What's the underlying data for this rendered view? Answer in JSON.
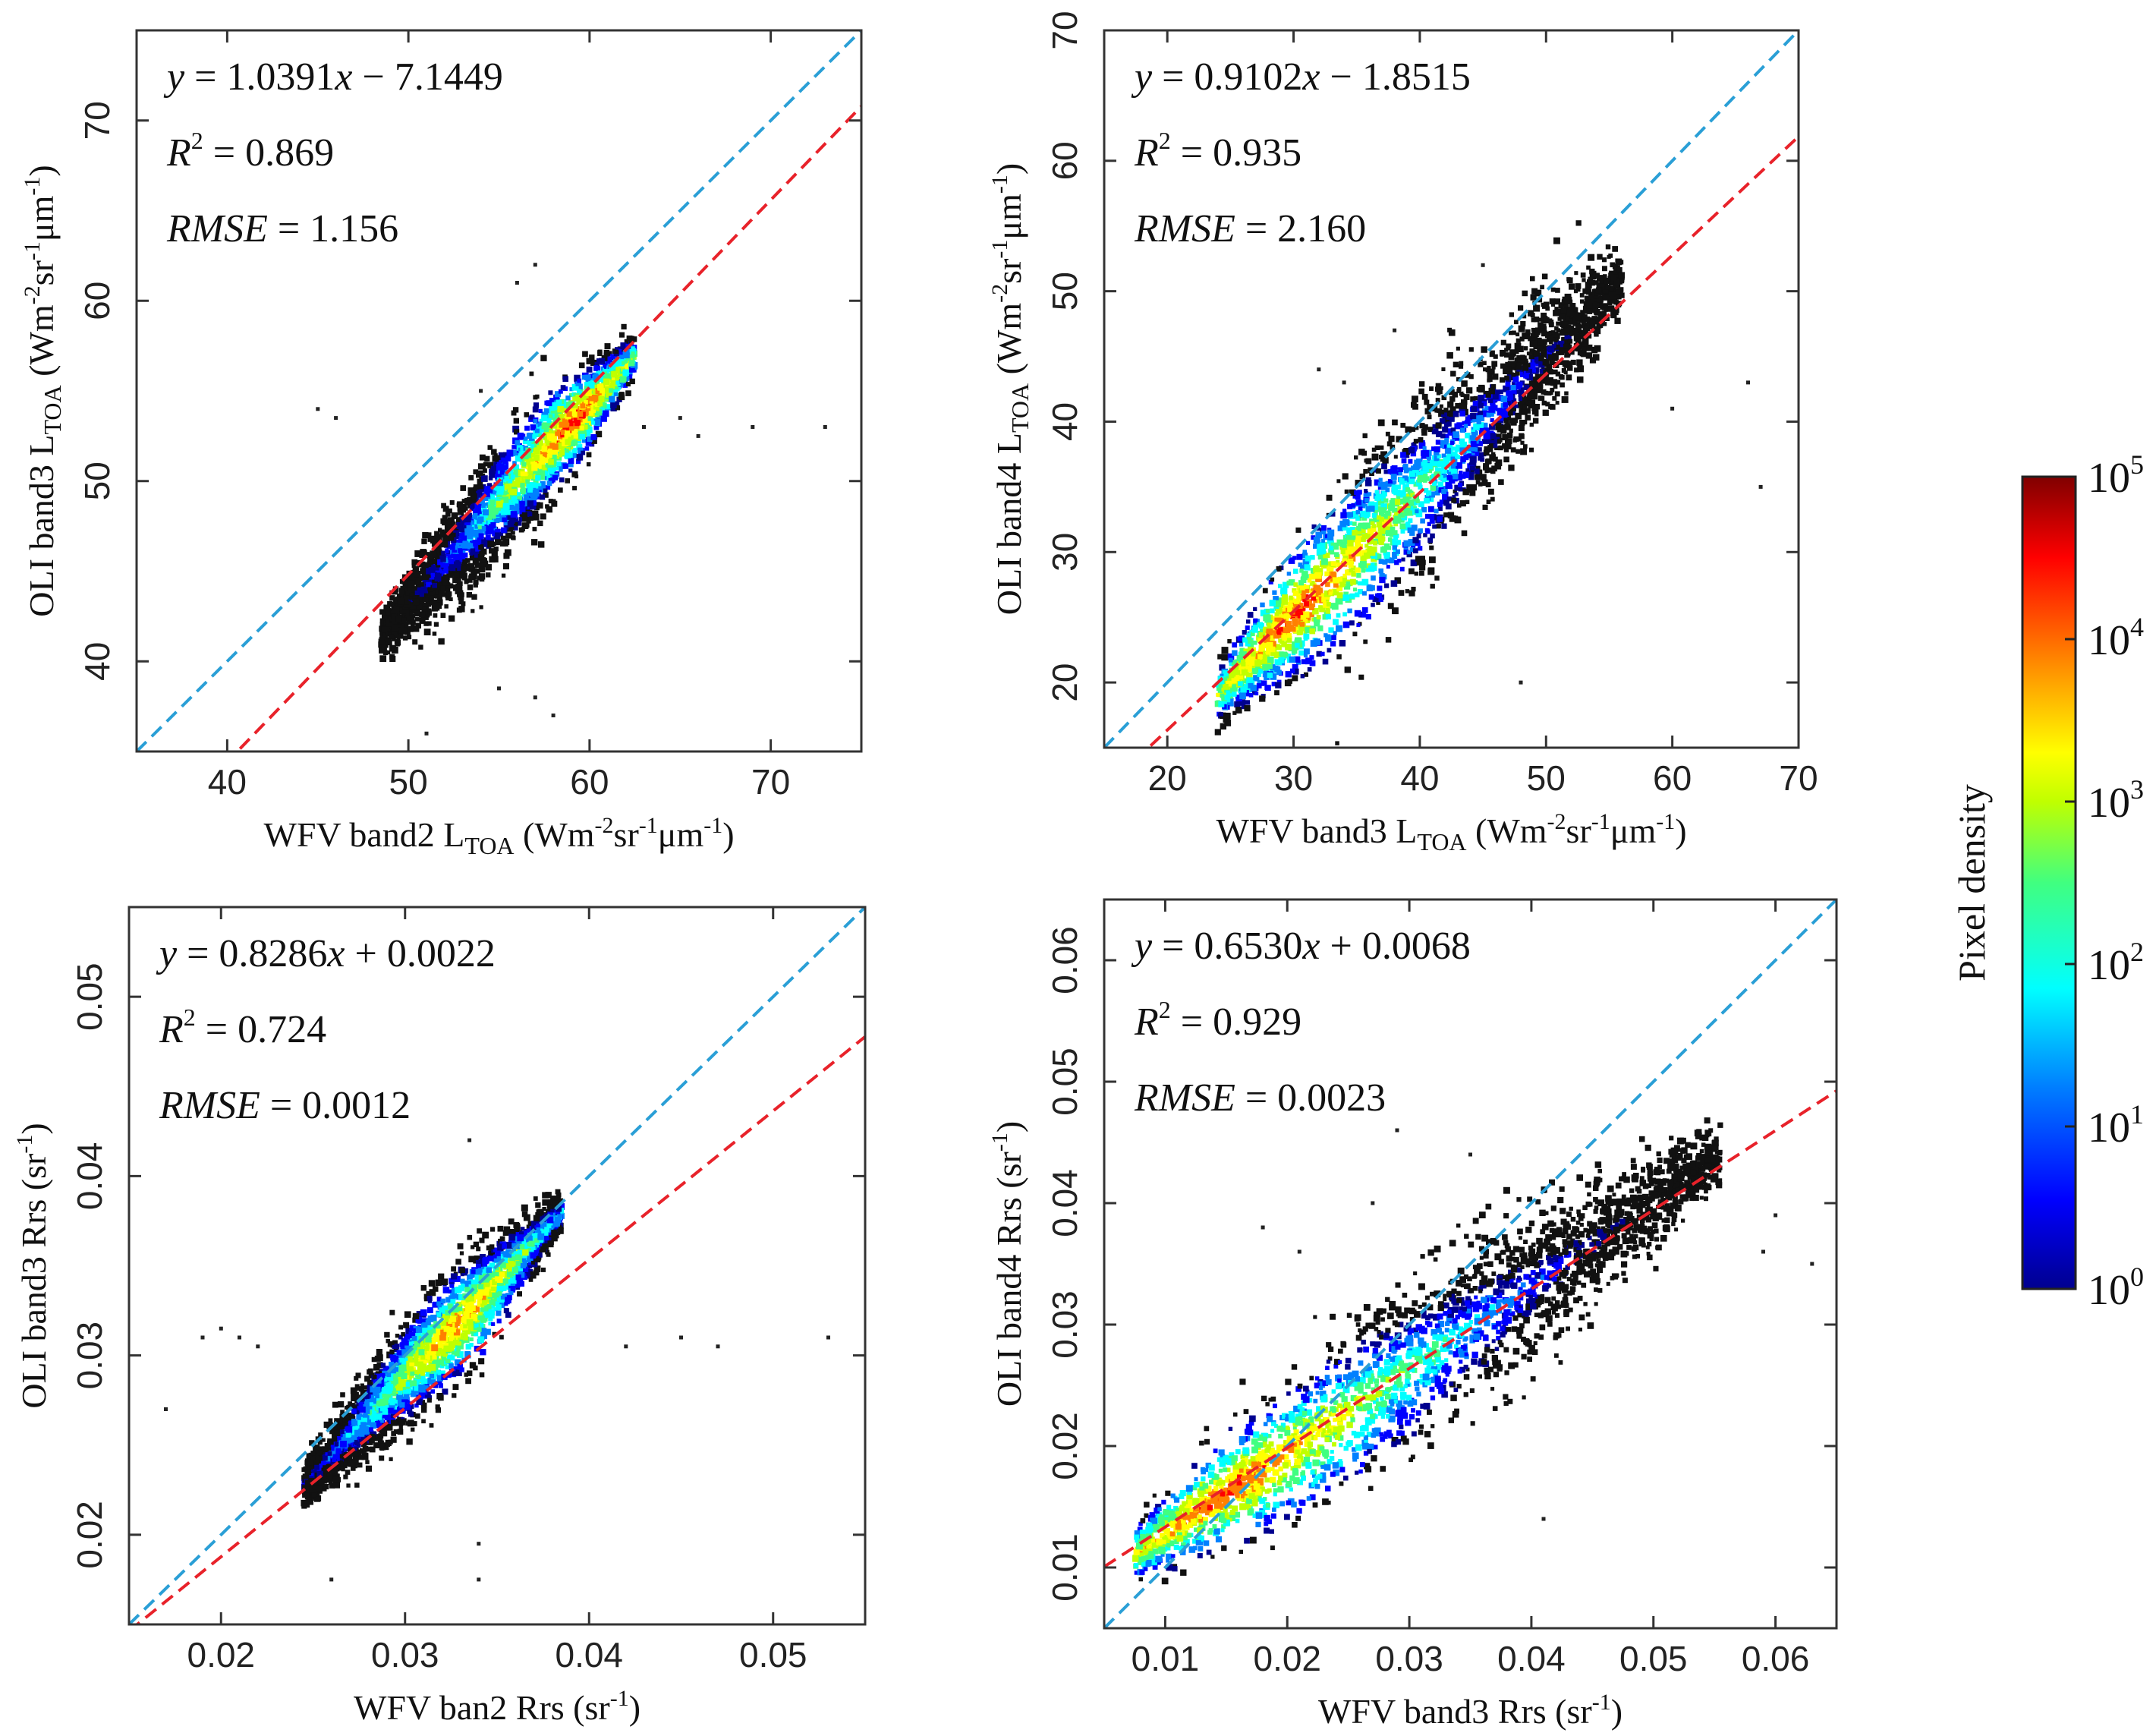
{
  "colors": {
    "one_to_one_line": "#2a9fd6",
    "fit_line": "#e8222a",
    "frame": "#333333",
    "density_ramp": [
      "#00008f",
      "#0000ff",
      "#0080ff",
      "#00ffff",
      "#40ff80",
      "#c0ff00",
      "#ffff00",
      "#ff8000",
      "#ff0000",
      "#800000"
    ]
  },
  "colorbar": {
    "title": "Pixel density",
    "tick_labels": [
      {
        "base": "10",
        "exp": "0"
      },
      {
        "base": "10",
        "exp": "1"
      },
      {
        "base": "10",
        "exp": "2"
      },
      {
        "base": "10",
        "exp": "3"
      },
      {
        "base": "10",
        "exp": "4"
      },
      {
        "base": "10",
        "exp": "5"
      }
    ]
  },
  "chart_data": [
    {
      "type": "scatter",
      "panel": "top-left",
      "title": "",
      "xlabel": {
        "main": "WFV band2 L",
        "sub": "TOA",
        "unit_pre": " (Wm",
        "unit_exp1": "-2",
        "unit_mid": "sr",
        "unit_exp2": "-1",
        "unit_mid2": "μm",
        "unit_exp3": "-1",
        "unit_post": ")"
      },
      "ylabel": {
        "main": "OLI band3 L",
        "sub": "TOA",
        "unit_pre": " (Wm",
        "unit_exp1": "-2",
        "unit_mid": "sr",
        "unit_exp2": "-1",
        "unit_mid2": "μm",
        "unit_exp3": "-1",
        "unit_post": ")"
      },
      "xlim": [
        35,
        75
      ],
      "ylim": [
        35,
        75
      ],
      "xticks": [
        40,
        50,
        60,
        70
      ],
      "yticks": [
        40,
        50,
        60,
        70
      ],
      "xtick_labels": [
        "40",
        "50",
        "60",
        "70"
      ],
      "ytick_labels": [
        "40",
        "50",
        "60",
        "70"
      ],
      "equation": {
        "lhs": "y",
        "rhs": " = 1.0391",
        "x": "x",
        "tail": " − 7.1449"
      },
      "r2": {
        "r": "R",
        "exp": "2",
        "value": " = 0.869"
      },
      "rmse": {
        "name": "RMSE",
        "value": " = 1.156"
      },
      "fit": {
        "slope": 1.0391,
        "intercept": -7.1449
      },
      "one_to_one": {
        "slope": 1,
        "intercept": 0
      },
      "density_cloud": {
        "x_range": [
          48.5,
          62.5
        ],
        "y_range": [
          41.5,
          57
        ],
        "peak": [
          59,
          53.5
        ]
      },
      "outliers": [
        [
          45,
          54
        ],
        [
          46,
          53.5
        ],
        [
          63,
          53
        ],
        [
          65,
          53.5
        ],
        [
          66,
          52.5
        ],
        [
          69,
          53
        ],
        [
          73,
          53
        ],
        [
          56,
          61
        ],
        [
          57,
          62
        ],
        [
          54,
          55
        ],
        [
          55,
          38.5
        ],
        [
          57,
          38
        ],
        [
          58,
          37
        ],
        [
          51,
          36
        ]
      ]
    },
    {
      "type": "scatter",
      "panel": "top-right",
      "title": "",
      "xlabel": {
        "main": "WFV band3 L",
        "sub": "TOA",
        "unit_pre": " (Wm",
        "unit_exp1": "-2",
        "unit_mid": "sr",
        "unit_exp2": "-1",
        "unit_mid2": "μm",
        "unit_exp3": "-1",
        "unit_post": ")"
      },
      "ylabel": {
        "main": "OLI band4 L",
        "sub": "TOA",
        "unit_pre": " (Wm",
        "unit_exp1": "-2",
        "unit_mid": "sr",
        "unit_exp2": "-1",
        "unit_mid2": "μm",
        "unit_exp3": "-1",
        "unit_post": ")"
      },
      "xlim": [
        15,
        70
      ],
      "ylim": [
        15,
        70
      ],
      "xticks": [
        20,
        30,
        40,
        50,
        60,
        70
      ],
      "yticks": [
        20,
        30,
        40,
        50,
        60,
        70
      ],
      "xtick_labels": [
        "20",
        "30",
        "40",
        "50",
        "60",
        "70"
      ],
      "ytick_labels": [
        "20",
        "30",
        "40",
        "50",
        "60",
        "70"
      ],
      "equation": {
        "lhs": "y",
        "rhs": " = 0.9102",
        "x": "x",
        "tail": " − 1.8515"
      },
      "r2": {
        "r": "R",
        "exp": "2",
        "value": " = 0.935"
      },
      "rmse": {
        "name": "RMSE",
        "value": " = 2.160"
      },
      "fit": {
        "slope": 0.9102,
        "intercept": -1.8515
      },
      "one_to_one": {
        "slope": 1,
        "intercept": 0
      },
      "density_cloud": {
        "x_range": [
          24,
          56
        ],
        "y_range": [
          19,
          51
        ],
        "peak": [
          30,
          26
        ]
      },
      "outliers": [
        [
          32,
          44
        ],
        [
          34,
          43
        ],
        [
          38,
          47
        ],
        [
          45,
          52
        ],
        [
          60,
          41
        ],
        [
          66,
          43
        ],
        [
          67,
          35
        ],
        [
          48,
          20
        ]
      ]
    },
    {
      "type": "scatter",
      "panel": "bottom-left",
      "title": "",
      "xlabel": {
        "main": "WFV ban2 Rrs",
        "sub": "",
        "unit_pre": " (sr",
        "unit_exp1": "-1",
        "unit_mid": "",
        "unit_exp2": "",
        "unit_mid2": "",
        "unit_exp3": "",
        "unit_post": ")"
      },
      "ylabel": {
        "main": "OLI band3 Rrs",
        "sub": "",
        "unit_pre": " (sr",
        "unit_exp1": "-1",
        "unit_mid": "",
        "unit_exp2": "",
        "unit_mid2": "",
        "unit_exp3": "",
        "unit_post": ")"
      },
      "xlim": [
        0.015,
        0.055
      ],
      "ylim": [
        0.015,
        0.055
      ],
      "xticks": [
        0.02,
        0.03,
        0.04,
        0.05
      ],
      "yticks": [
        0.02,
        0.03,
        0.04,
        0.05
      ],
      "xtick_labels": [
        "0.02",
        "0.03",
        "0.04",
        "0.05"
      ],
      "ytick_labels": [
        "0.02",
        "0.03",
        "0.04",
        "0.05"
      ],
      "equation": {
        "lhs": "y",
        "rhs": " = 0.8286",
        "x": "x",
        "tail": " + 0.0022"
      },
      "r2": {
        "r": "R",
        "exp": "2",
        "value": " = 0.724"
      },
      "rmse": {
        "name": "RMSE",
        "value": " = 0.0012"
      },
      "fit": {
        "slope": 0.8286,
        "intercept": 0.0022
      },
      "one_to_one": {
        "slope": 1,
        "intercept": 0
      },
      "density_cloud": {
        "x_range": [
          0.0245,
          0.0385
        ],
        "y_range": [
          0.0228,
          0.038
        ],
        "peak": [
          0.034,
          0.0305
        ]
      },
      "outliers": [
        [
          0.019,
          0.031
        ],
        [
          0.02,
          0.0315
        ],
        [
          0.021,
          0.031
        ],
        [
          0.022,
          0.0305
        ],
        [
          0.042,
          0.0305
        ],
        [
          0.045,
          0.031
        ],
        [
          0.047,
          0.0305
        ],
        [
          0.053,
          0.031
        ],
        [
          0.0335,
          0.042
        ],
        [
          0.034,
          0.0175
        ],
        [
          0.026,
          0.0175
        ],
        [
          0.034,
          0.0195
        ],
        [
          0.017,
          0.027
        ]
      ]
    },
    {
      "type": "scatter",
      "panel": "bottom-right",
      "title": "",
      "xlabel": {
        "main": "WFV band3 Rrs",
        "sub": "",
        "unit_pre": " (sr",
        "unit_exp1": "-1",
        "unit_mid": "",
        "unit_exp2": "",
        "unit_mid2": "",
        "unit_exp3": "",
        "unit_post": ")"
      },
      "ylabel": {
        "main": "OLI band4 Rrs",
        "sub": "",
        "unit_pre": " (sr",
        "unit_exp1": "-1",
        "unit_mid": "",
        "unit_exp2": "",
        "unit_mid2": "",
        "unit_exp3": "",
        "unit_post": ")"
      },
      "xlim": [
        0.005,
        0.065
      ],
      "ylim": [
        0.005,
        0.065
      ],
      "xticks": [
        0.01,
        0.02,
        0.03,
        0.04,
        0.05,
        0.06
      ],
      "yticks": [
        0.01,
        0.02,
        0.03,
        0.04,
        0.05,
        0.06
      ],
      "xtick_labels": [
        "0.01",
        "0.02",
        "0.03",
        "0.04",
        "0.05",
        "0.06"
      ],
      "ytick_labels": [
        "0.01",
        "0.02",
        "0.03",
        "0.04",
        "0.05",
        "0.06"
      ],
      "equation": {
        "lhs": "y",
        "rhs": " = 0.6530",
        "x": "x",
        "tail": " + 0.0068"
      },
      "r2": {
        "r": "R",
        "exp": "2",
        "value": " = 0.929"
      },
      "rmse": {
        "name": "RMSE",
        "value": " = 0.0023"
      },
      "fit": {
        "slope": 0.653,
        "intercept": 0.0068
      },
      "one_to_one": {
        "slope": 1,
        "intercept": 0
      },
      "density_cloud": {
        "x_range": [
          0.0075,
          0.0555
        ],
        "y_range": [
          0.011,
          0.044
        ],
        "peak": [
          0.016,
          0.016
        ]
      },
      "outliers": [
        [
          0.018,
          0.038
        ],
        [
          0.021,
          0.036
        ],
        [
          0.027,
          0.04
        ],
        [
          0.029,
          0.046
        ],
        [
          0.035,
          0.044
        ],
        [
          0.059,
          0.036
        ],
        [
          0.06,
          0.039
        ],
        [
          0.063,
          0.035
        ],
        [
          0.041,
          0.014
        ]
      ]
    }
  ]
}
